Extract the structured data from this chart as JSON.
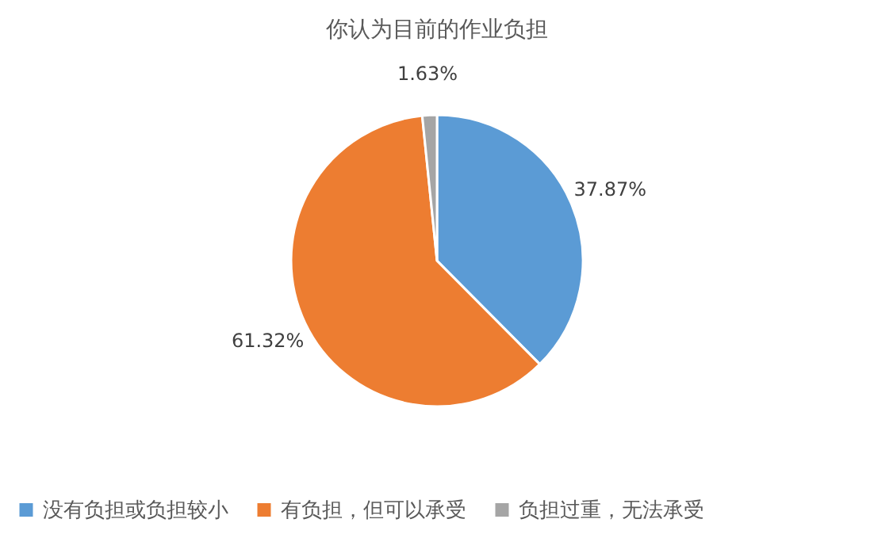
{
  "chart_data": {
    "type": "pie",
    "title": "你认为目前的作业负担",
    "categories": [
      "没有负担或负担较小",
      "有负担，但可以承受",
      "负担过重，无法承受"
    ],
    "values": [
      37.87,
      61.32,
      1.63
    ],
    "colors": [
      "#5b9bd5",
      "#ed7d31",
      "#a5a5a5"
    ],
    "value_labels": [
      "37.87%",
      "61.32%",
      "1.63%"
    ],
    "legend": "bottom"
  }
}
